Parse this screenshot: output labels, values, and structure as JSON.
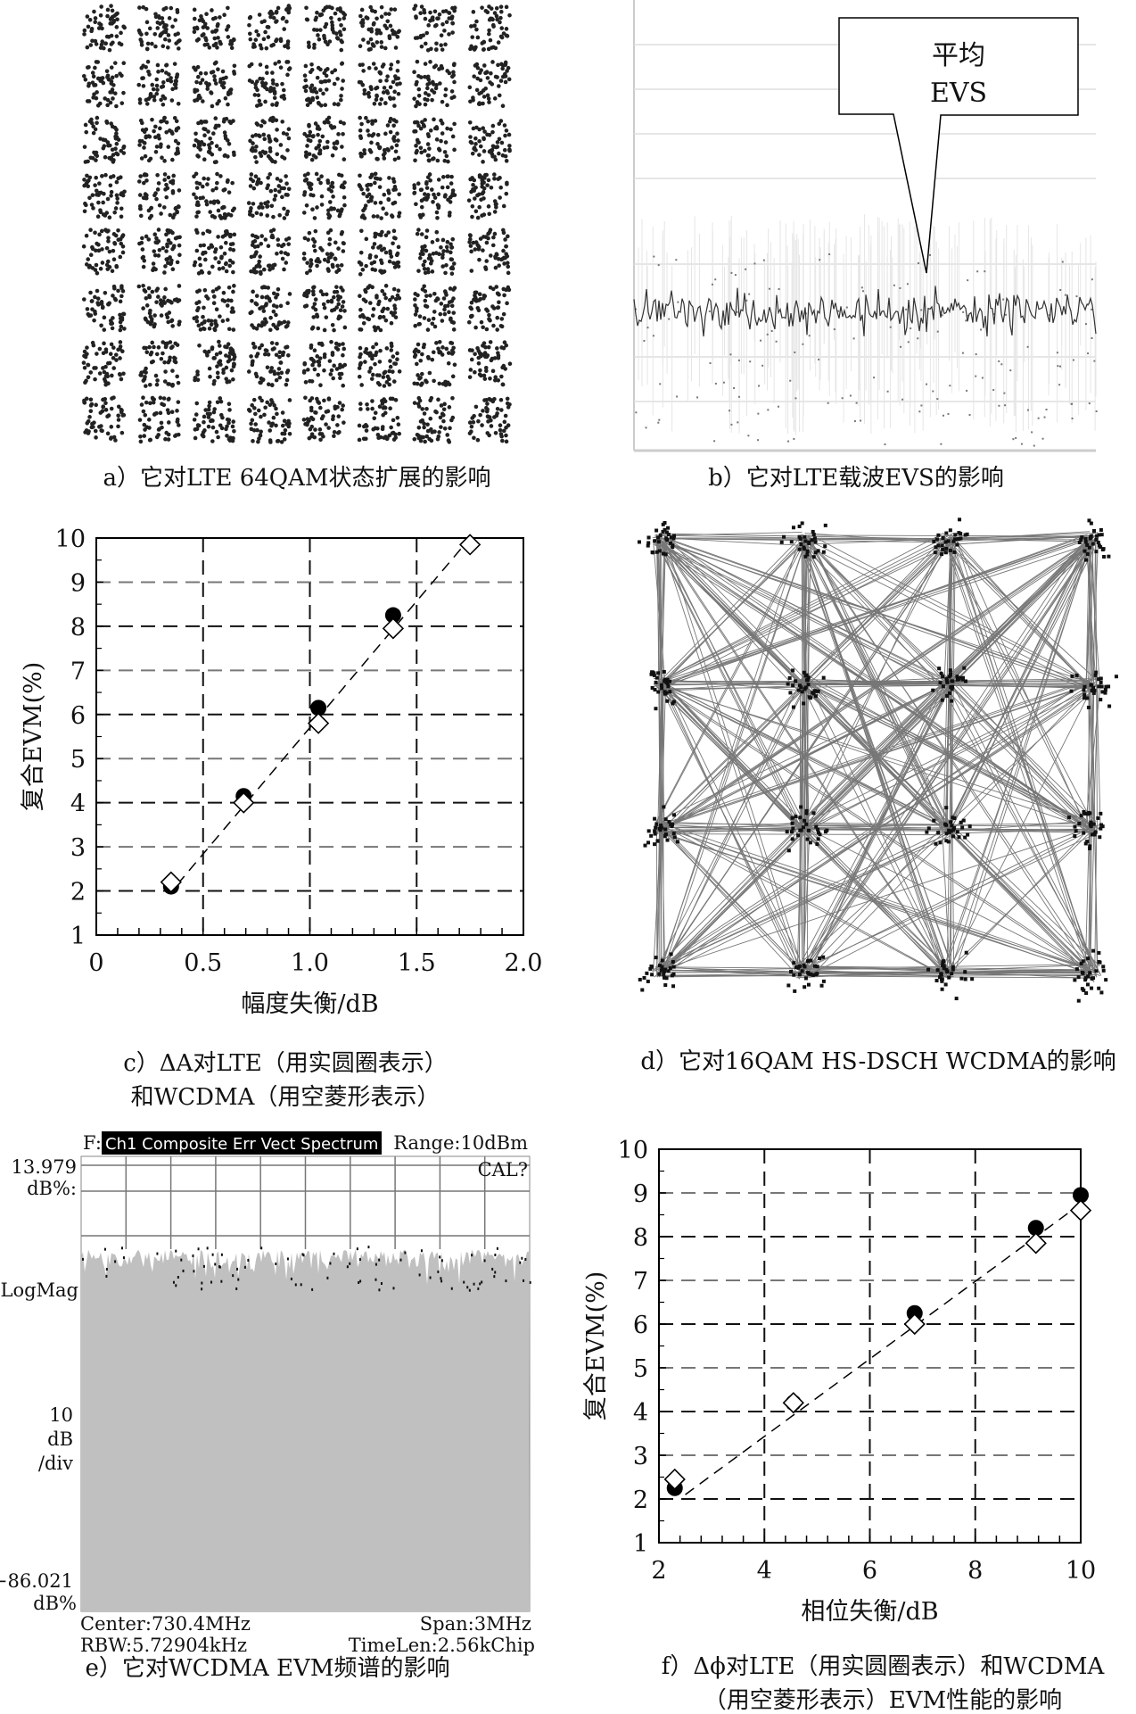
{
  "panels": {
    "a": {
      "caption": "a）它对LTE 64QAM状态扩展的影响",
      "grid": [
        8,
        8
      ]
    },
    "b": {
      "caption": "b）它对LTE载波EVS的影响",
      "callout_line1": "平均",
      "callout_line2": "EVS"
    },
    "d": {
      "caption": "d）它对16QAM HS-DSCH WCDMA的影响",
      "grid": [
        4,
        4
      ]
    },
    "e": {
      "caption": "e）它对WCDMA EVM频谱的影响",
      "title_prefix": "F:",
      "title": "Ch1 Composite Err Vect Spectrum",
      "range": "Range:10dBm",
      "cal": "CAL?",
      "top_value": "13.979",
      "top_unit": "dB%:",
      "scale_label": "LogMag",
      "div_1": "10",
      "div_2": "dB",
      "div_3": "/div",
      "bottom_value": "−86.021",
      "bottom_unit": "dB%",
      "center": "Center:730.4MHz",
      "rbw": "RBW:5.72904kHz",
      "span": "Span:3MHz",
      "timelen": "TimeLen:2.56kChip"
    }
  },
  "chart_data": [
    {
      "id": "c",
      "type": "scatter",
      "caption_line1": "c）ΔA对LTE（用实圆圈表示）",
      "caption_line2": "和WCDMA（用空菱形表示）",
      "xlabel": "幅度失衡/dB",
      "ylabel": "复合EVM(%)",
      "xlim": [
        0,
        2.0
      ],
      "ylim": [
        1,
        10
      ],
      "xticks": [
        0,
        0.5,
        1.0,
        1.5,
        2.0
      ],
      "xtick_labels": [
        "0",
        "0.5",
        "1.0",
        "1.5",
        "2.0"
      ],
      "yticks": [
        1,
        2,
        3,
        4,
        5,
        6,
        7,
        8,
        9,
        10
      ],
      "grid": true,
      "series": [
        {
          "name": "LTE",
          "marker": "filled-circle",
          "x": [
            0.35,
            0.69,
            1.04,
            1.39
          ],
          "y": [
            2.1,
            4.15,
            6.15,
            8.25
          ]
        },
        {
          "name": "WCDMA",
          "marker": "open-diamond",
          "x": [
            0.35,
            0.69,
            1.04,
            1.39,
            1.75
          ],
          "y": [
            2.2,
            4.0,
            5.8,
            7.95,
            9.85
          ]
        }
      ],
      "trend": {
        "x": [
          0.38,
          1.75
        ],
        "y": [
          2.15,
          10.0
        ]
      }
    },
    {
      "id": "f",
      "type": "scatter",
      "caption_line1": "f）Δϕ对LTE（用实圆圈表示）和WCDMA",
      "caption_line2": "（用空菱形表示）EVM性能的影响",
      "xlabel": "相位失衡/dB",
      "ylabel": "复合EVM(%)",
      "xlim": [
        2,
        10
      ],
      "ylim": [
        1,
        10
      ],
      "xticks": [
        2,
        4,
        6,
        8,
        10
      ],
      "xtick_labels": [
        "2",
        "4",
        "6",
        "8",
        "10"
      ],
      "yticks": [
        1,
        2,
        3,
        4,
        5,
        6,
        7,
        8,
        9,
        10
      ],
      "grid": true,
      "series": [
        {
          "name": "LTE",
          "marker": "filled-circle",
          "x": [
            2.3,
            4.55,
            6.85,
            9.15,
            10.0
          ],
          "y": [
            2.25,
            4.2,
            6.25,
            8.2,
            8.95
          ]
        },
        {
          "name": "WCDMA",
          "marker": "open-diamond",
          "x": [
            2.3,
            4.55,
            6.85,
            9.15,
            10.0
          ],
          "y": [
            2.45,
            4.2,
            6.0,
            7.85,
            8.6
          ]
        }
      ],
      "trend": {
        "x": [
          2.5,
          10.0
        ],
        "y": [
          2.1,
          8.75
        ]
      }
    }
  ]
}
